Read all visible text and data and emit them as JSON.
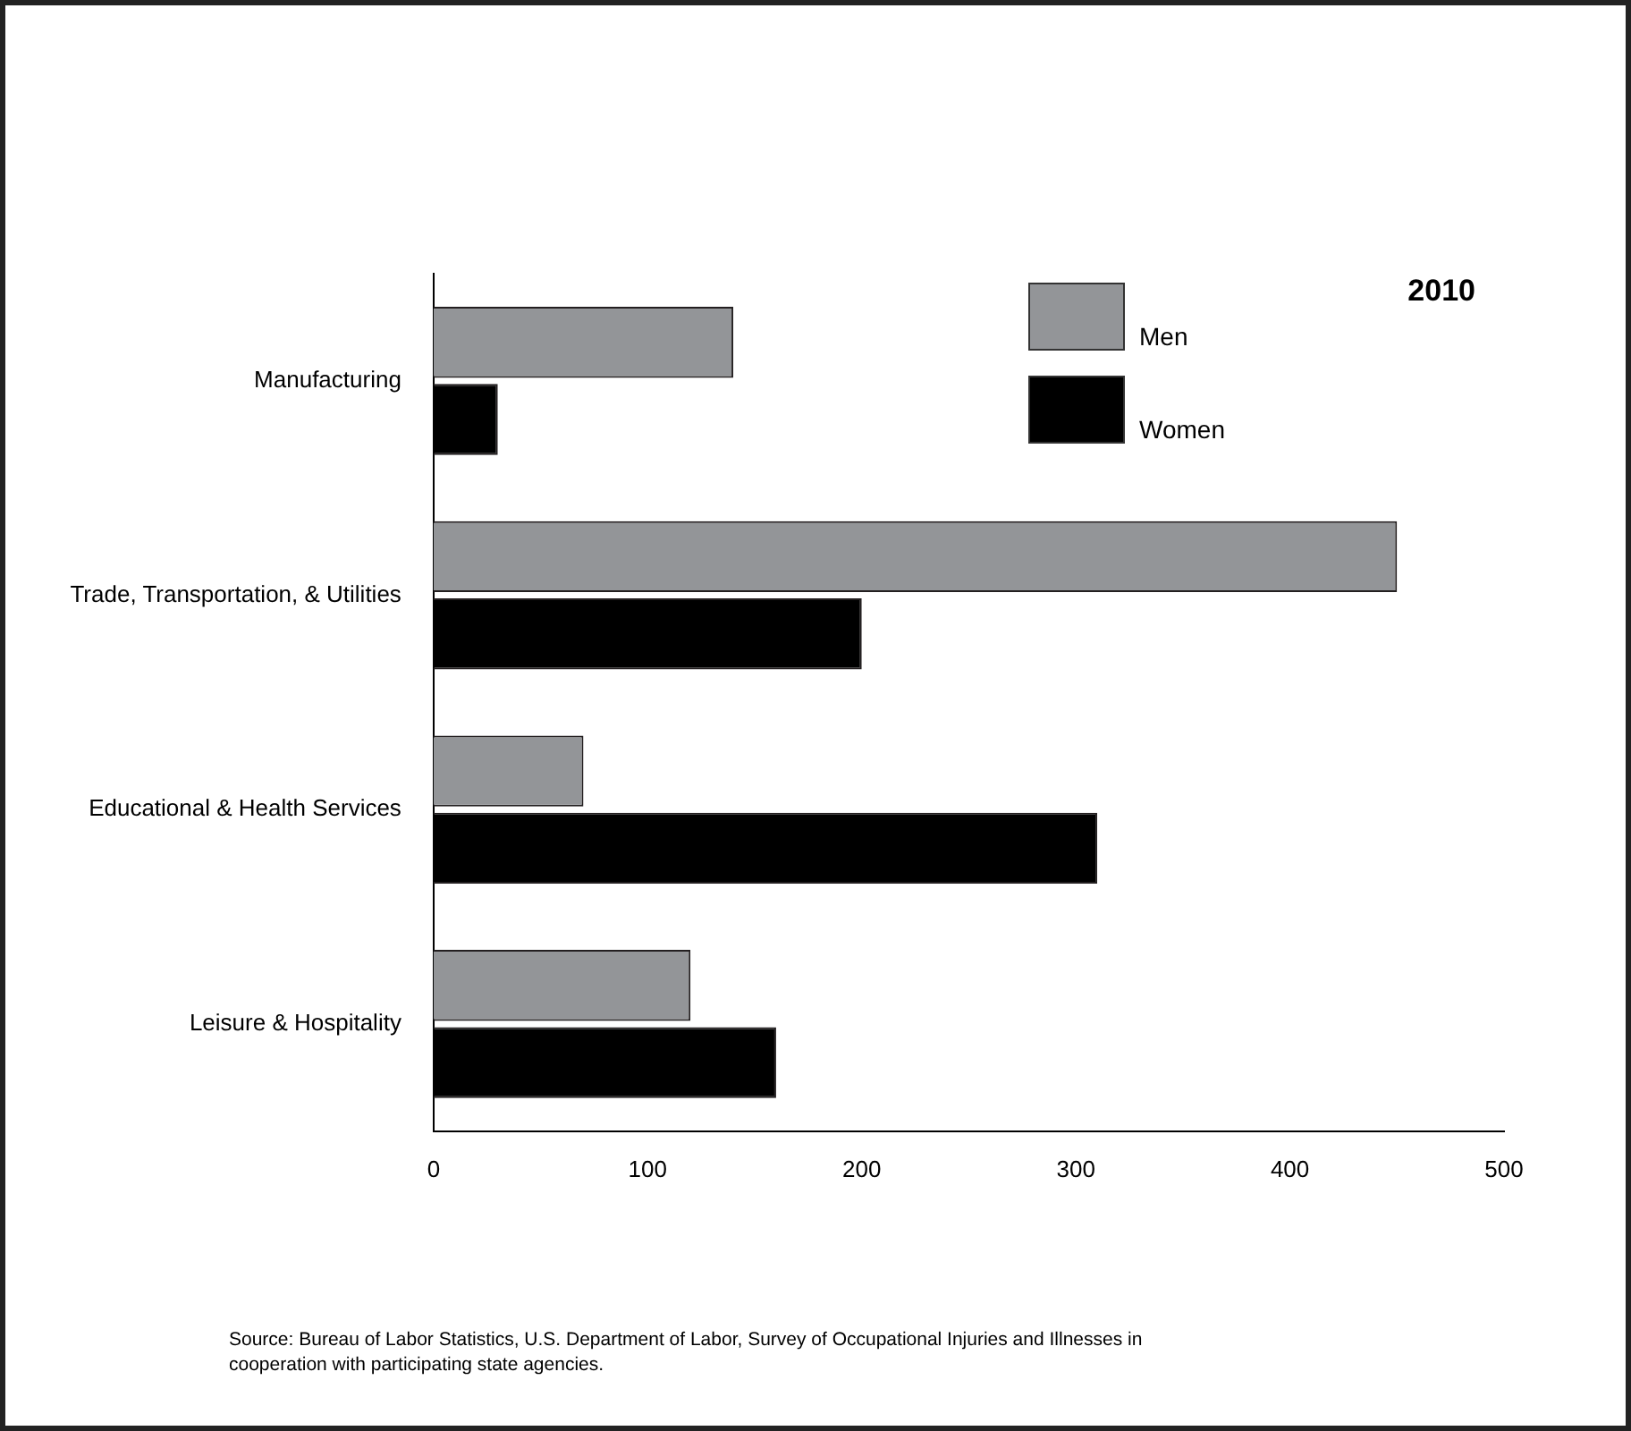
{
  "chart_data": {
    "type": "bar",
    "orientation": "horizontal",
    "title": "2010",
    "categories": [
      "Manufacturing",
      "Trade, Transportation, & Utilities",
      "Educational & Health Services",
      "Leisure & Hospitality"
    ],
    "series": [
      {
        "name": "Men",
        "color": "#939598",
        "values": [
          140,
          450,
          70,
          120
        ]
      },
      {
        "name": "Women",
        "color": "#000000",
        "values": [
          30,
          200,
          310,
          160
        ]
      }
    ],
    "xlim": [
      0,
      500
    ],
    "xticks": [
      0,
      100,
      200,
      300,
      400,
      500
    ],
    "grid": false,
    "legend": "top right",
    "annotations": [
      "Source: Bureau of Labor Statistics, U.S. Department of Labor, Survey of Occupational Injuries and Illnesses in cooperation with participating state agencies."
    ]
  }
}
